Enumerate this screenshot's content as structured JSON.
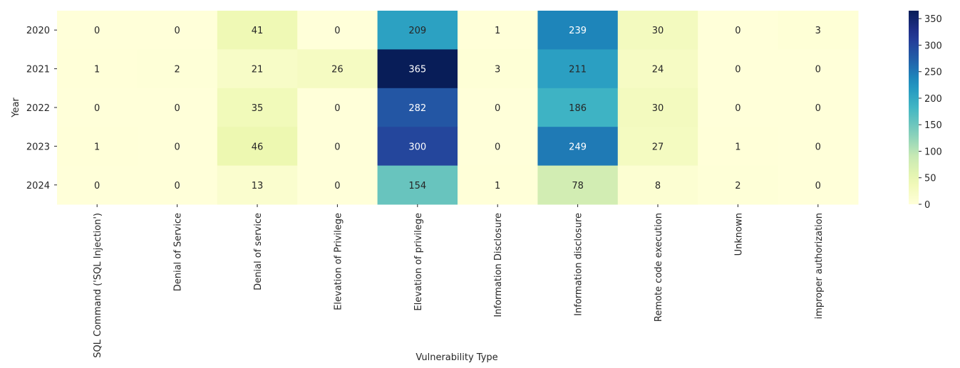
{
  "chart_data": {
    "type": "heatmap",
    "title": "",
    "xlabel": "Vulnerability Type",
    "ylabel": "Year",
    "x_categories": [
      "SQL Command ('SQL Injection')",
      "Denial of Service",
      "Denial of service",
      "Elevation of Privilege",
      "Elevation of privilege",
      "Information Disclosure",
      "Information disclosure",
      "Remote code execution",
      "Unknown",
      "improper authorization"
    ],
    "y_categories": [
      "2020",
      "2021",
      "2022",
      "2023",
      "2024"
    ],
    "values": [
      [
        0,
        0,
        41,
        0,
        209,
        1,
        239,
        30,
        0,
        3
      ],
      [
        1,
        2,
        21,
        26,
        365,
        3,
        211,
        24,
        0,
        0
      ],
      [
        0,
        0,
        35,
        0,
        282,
        0,
        186,
        30,
        0,
        0
      ],
      [
        1,
        0,
        46,
        0,
        300,
        0,
        249,
        27,
        1,
        0
      ],
      [
        0,
        0,
        13,
        0,
        154,
        1,
        78,
        8,
        2,
        0
      ]
    ],
    "colormap": "YlGnBu",
    "vmin": 0,
    "vmax": 365,
    "colorbar_ticks": [
      0,
      50,
      100,
      150,
      200,
      250,
      300,
      350
    ],
    "annotations": true
  }
}
